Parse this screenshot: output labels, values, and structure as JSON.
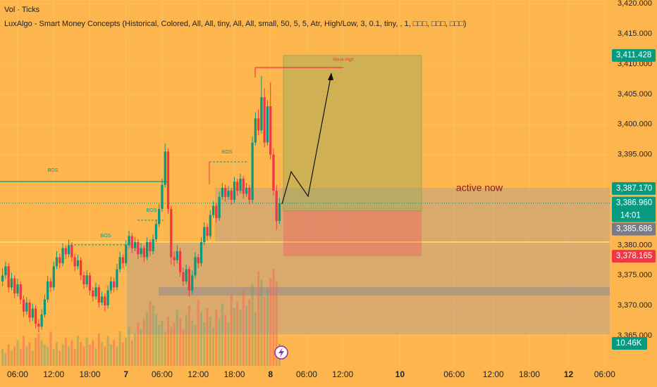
{
  "chart_data": {
    "type": "candlestick",
    "header": [
      "Vol · Ticks",
      "LuxAlgo - Smart Money Concepts (Historical, Colored, All, All, tiny, All, All, small, 50, 5, 5, Atr, High/Low, 3, 0.1, tiny, , 1, □□□, □□□, □□□)"
    ],
    "annotations": [
      "BOS",
      "BOS",
      "BOS",
      "BOS",
      "Weak High",
      "active now"
    ],
    "up_color": "#089981",
    "down_color": "#f23645",
    "ylim": [
      3360,
      3420.6
    ],
    "yticks": [
      {
        "value": 3365,
        "label": "3,365.000"
      },
      {
        "value": 3370,
        "label": "3,370.000"
      },
      {
        "value": 3375,
        "label": "3,375.000"
      },
      {
        "value": 3380,
        "label": "3,380.000"
      },
      {
        "value": 3395,
        "label": "3,395.000"
      },
      {
        "value": 3400,
        "label": "3,400.000"
      },
      {
        "value": 3405,
        "label": "3,405.000"
      },
      {
        "value": 3410,
        "label": "3,410.000"
      },
      {
        "value": 3415,
        "label": "3,415.000"
      },
      {
        "value": 3420,
        "label": "3,420.000"
      }
    ],
    "xlim": [
      -5.85,
      196.7
    ],
    "xticks": [
      {
        "value": 0,
        "label": "06:00"
      },
      {
        "value": 12,
        "label": "12:00"
      },
      {
        "value": 24,
        "label": "18:00"
      },
      {
        "value": 36,
        "label": "7"
      },
      {
        "value": 48,
        "label": "06:00"
      },
      {
        "value": 60,
        "label": "12:00"
      },
      {
        "value": 72,
        "label": "18:00"
      },
      {
        "value": 84,
        "label": "8"
      },
      {
        "value": 96,
        "label": "06:00"
      },
      {
        "value": 108,
        "label": "12:00"
      },
      {
        "value": 127,
        "label": "10"
      },
      {
        "value": 145,
        "label": "06:00"
      },
      {
        "value": 158,
        "label": "12:00"
      },
      {
        "value": 170,
        "label": "18:00"
      },
      {
        "value": 183,
        "label": "12"
      },
      {
        "value": 195,
        "label": "06:00"
      }
    ],
    "price_labels": [
      {
        "value": 3411.428,
        "label": "3,411.428"
      },
      {
        "value": 3387.17,
        "label": "3,387.170"
      },
      {
        "value": 3386.96,
        "label": "3,386.960"
      },
      {
        "value": 3385.686,
        "label": "3,385.686"
      },
      {
        "value": 3378.165,
        "label": "3,378.165"
      }
    ],
    "countdown": "14:01",
    "vlim": [
      0,
      170
    ],
    "volume_label": {
      "value": 10.46,
      "label": "10.46K"
    },
    "x": [
      -5,
      -4,
      -3,
      -2,
      -1,
      0,
      1,
      2,
      3,
      4,
      5,
      6,
      7,
      8,
      9,
      10,
      11,
      12,
      13,
      14,
      15,
      16,
      17,
      18,
      19,
      20,
      21,
      22,
      23,
      24,
      25,
      26,
      27,
      28,
      29,
      30,
      31,
      32,
      33,
      34,
      35,
      36,
      37,
      38,
      39,
      40,
      41,
      42,
      43,
      44,
      45,
      46,
      47,
      48,
      49,
      50,
      51,
      52,
      53,
      54,
      55,
      56,
      57,
      58,
      59,
      60,
      61,
      62,
      63,
      64,
      65,
      66,
      67,
      68,
      69,
      70,
      71,
      72,
      73,
      74,
      75,
      76,
      77,
      78,
      79,
      80,
      81,
      82,
      83,
      84,
      85,
      86,
      87
    ],
    "candles": [
      [
        3374.0,
        3376.2,
        3373.2,
        3375.0
      ],
      [
        3375.0,
        3377.3,
        3374.4,
        3376.5
      ],
      [
        3376.5,
        3377.0,
        3372.2,
        3373.0
      ],
      [
        3373.0,
        3375.4,
        3372.5,
        3374.5
      ],
      [
        3374.5,
        3375.0,
        3371.2,
        3372.0
      ],
      [
        3372.0,
        3374.4,
        3371.5,
        3373.5
      ],
      [
        3373.5,
        3374.0,
        3370.2,
        3371.0
      ],
      [
        3371.0,
        3371.6,
        3368.1,
        3369.0
      ],
      [
        3369.0,
        3371.4,
        3368.5,
        3370.5
      ],
      [
        3370.5,
        3371.0,
        3367.2,
        3368.0
      ],
      [
        3368.0,
        3370.3,
        3367.4,
        3369.5
      ],
      [
        3369.5,
        3370.0,
        3366.2,
        3367.0
      ],
      [
        3367.0,
        3367.8,
        3365.6,
        3366.5
      ],
      [
        3366.5,
        3369.4,
        3366.0,
        3368.5
      ],
      [
        3368.5,
        3371.8,
        3368.0,
        3371.0
      ],
      [
        3371.0,
        3374.9,
        3370.5,
        3374.0
      ],
      [
        3374.0,
        3374.6,
        3372.2,
        3373.0
      ],
      [
        3373.0,
        3377.3,
        3372.5,
        3376.5
      ],
      [
        3376.5,
        3379.0,
        3376.0,
        3378.0
      ],
      [
        3378.0,
        3378.6,
        3376.2,
        3377.0
      ],
      [
        3377.0,
        3380.3,
        3376.5,
        3379.5
      ],
      [
        3379.5,
        3380.0,
        3377.7,
        3378.5
      ],
      [
        3378.5,
        3380.9,
        3378.0,
        3380.0
      ],
      [
        3380.0,
        3380.5,
        3377.2,
        3378.0
      ],
      [
        3378.0,
        3378.6,
        3375.7,
        3376.5
      ],
      [
        3376.5,
        3378.4,
        3376.0,
        3377.5
      ],
      [
        3377.5,
        3378.0,
        3374.2,
        3375.0
      ],
      [
        3375.0,
        3375.6,
        3372.7,
        3373.5
      ],
      [
        3373.5,
        3375.9,
        3373.0,
        3375.0
      ],
      [
        3375.0,
        3375.5,
        3371.7,
        3372.5
      ],
      [
        3372.5,
        3373.0,
        3370.7,
        3371.5
      ],
      [
        3371.5,
        3373.8,
        3371.0,
        3373.0
      ],
      [
        3373.0,
        3373.5,
        3369.7,
        3370.5
      ],
      [
        3370.5,
        3372.3,
        3370.0,
        3371.5
      ],
      [
        3371.5,
        3372.0,
        3369.0,
        3370.0
      ],
      [
        3370.0,
        3373.3,
        3369.5,
        3372.5
      ],
      [
        3372.5,
        3374.8,
        3372.0,
        3374.0
      ],
      [
        3374.0,
        3374.6,
        3372.2,
        3373.0
      ],
      [
        3373.0,
        3376.9,
        3372.5,
        3376.0
      ],
      [
        3376.0,
        3378.9,
        3375.5,
        3378.0
      ],
      [
        3378.0,
        3378.5,
        3376.2,
        3377.0
      ],
      [
        3377.0,
        3380.8,
        3376.5,
        3380.0
      ],
      [
        3380.0,
        3382.4,
        3379.5,
        3381.5
      ],
      [
        3381.5,
        3382.0,
        3378.7,
        3379.5
      ],
      [
        3379.5,
        3381.3,
        3379.0,
        3380.5
      ],
      [
        3380.5,
        3381.0,
        3377.7,
        3378.5
      ],
      [
        3378.5,
        3380.3,
        3378.0,
        3379.5
      ],
      [
        3379.5,
        3380.0,
        3377.2,
        3378.0
      ],
      [
        3378.0,
        3381.3,
        3377.5,
        3380.5
      ],
      [
        3380.5,
        3381.0,
        3378.2,
        3379.0
      ],
      [
        3379.0,
        3381.8,
        3378.5,
        3381.0
      ],
      [
        3381.0,
        3384.3,
        3380.5,
        3383.5
      ],
      [
        3383.5,
        3386.8,
        3383.0,
        3386.0
      ],
      [
        3386.0,
        3391.0,
        3385.5,
        3390.0
      ],
      [
        3390.0,
        3396.8,
        3389.5,
        3395.5
      ],
      [
        3395.5,
        3396.0,
        3385.2,
        3386.0
      ],
      [
        3386.0,
        3386.5,
        3376.8,
        3378.0
      ],
      [
        3378.0,
        3379.0,
        3376.5,
        3377.5
      ],
      [
        3377.5,
        3380.0,
        3377.0,
        3379.0
      ],
      [
        3379.0,
        3379.5,
        3374.8,
        3375.5
      ],
      [
        3375.5,
        3376.2,
        3373.2,
        3374.0
      ],
      [
        3374.0,
        3376.8,
        3373.5,
        3376.0
      ],
      [
        3376.0,
        3376.5,
        3371.5,
        3372.5
      ],
      [
        3372.5,
        3375.8,
        3372.0,
        3375.0
      ],
      [
        3375.0,
        3378.8,
        3374.5,
        3378.0
      ],
      [
        3378.0,
        3378.5,
        3376.2,
        3377.0
      ],
      [
        3377.0,
        3381.3,
        3376.5,
        3380.5
      ],
      [
        3380.5,
        3383.8,
        3380.0,
        3383.0
      ],
      [
        3383.0,
        3383.6,
        3380.7,
        3381.5
      ],
      [
        3381.5,
        3385.8,
        3381.0,
        3385.0
      ],
      [
        3385.0,
        3387.3,
        3384.5,
        3386.5
      ],
      [
        3386.5,
        3387.0,
        3383.7,
        3384.5
      ],
      [
        3384.5,
        3388.8,
        3384.0,
        3388.0
      ],
      [
        3388.0,
        3390.3,
        3387.5,
        3389.5
      ],
      [
        3389.5,
        3390.0,
        3387.2,
        3388.0
      ],
      [
        3388.0,
        3389.8,
        3387.5,
        3389.0
      ],
      [
        3389.0,
        3389.5,
        3386.7,
        3387.5
      ],
      [
        3387.5,
        3391.3,
        3387.0,
        3390.5
      ],
      [
        3390.5,
        3391.0,
        3388.2,
        3389.0
      ],
      [
        3389.0,
        3391.8,
        3388.5,
        3391.0
      ],
      [
        3391.0,
        3391.5,
        3387.7,
        3388.5
      ],
      [
        3388.5,
        3390.3,
        3388.0,
        3389.5
      ],
      [
        3389.5,
        3390.0,
        3386.7,
        3387.5
      ],
      [
        3387.5,
        3398.0,
        3387.0,
        3397.0
      ],
      [
        3397.0,
        3402.0,
        3396.5,
        3401.0
      ],
      [
        3401.0,
        3402.5,
        3398.2,
        3399.0
      ],
      [
        3399.0,
        3408.0,
        3398.5,
        3404.5
      ],
      [
        3404.5,
        3406.0,
        3396.2,
        3397.0
      ],
      [
        3397.0,
        3404.0,
        3396.5,
        3403.0
      ],
      [
        3403.0,
        3407.0,
        3394.2,
        3395.0
      ],
      [
        3395.0,
        3396.0,
        3388.2,
        3389.0
      ],
      [
        3389.0,
        3390.0,
        3382.5,
        3384.0
      ],
      [
        3384.0,
        3387.8,
        3383.5,
        3386.96
      ]
    ],
    "volume": [
      8,
      6,
      10,
      7,
      9,
      12,
      8,
      14,
      9,
      11,
      7,
      13,
      15,
      12,
      10,
      9,
      16,
      8,
      11,
      7,
      10,
      13,
      9,
      12,
      8,
      14,
      11,
      9,
      13,
      10,
      12,
      8,
      15,
      11,
      9,
      14,
      10,
      12,
      9,
      16,
      11,
      13,
      18,
      12,
      15,
      20,
      17,
      22,
      25,
      30,
      28,
      24,
      19,
      21,
      16,
      23,
      18,
      20,
      26,
      22,
      17,
      24,
      28,
      21,
      19,
      31,
      25,
      20,
      27,
      23,
      18,
      26,
      22,
      29,
      24,
      20,
      33,
      27,
      30,
      26,
      35,
      28,
      31,
      38,
      25,
      44,
      40,
      32,
      36,
      41,
      45,
      39,
      10.46
    ]
  }
}
